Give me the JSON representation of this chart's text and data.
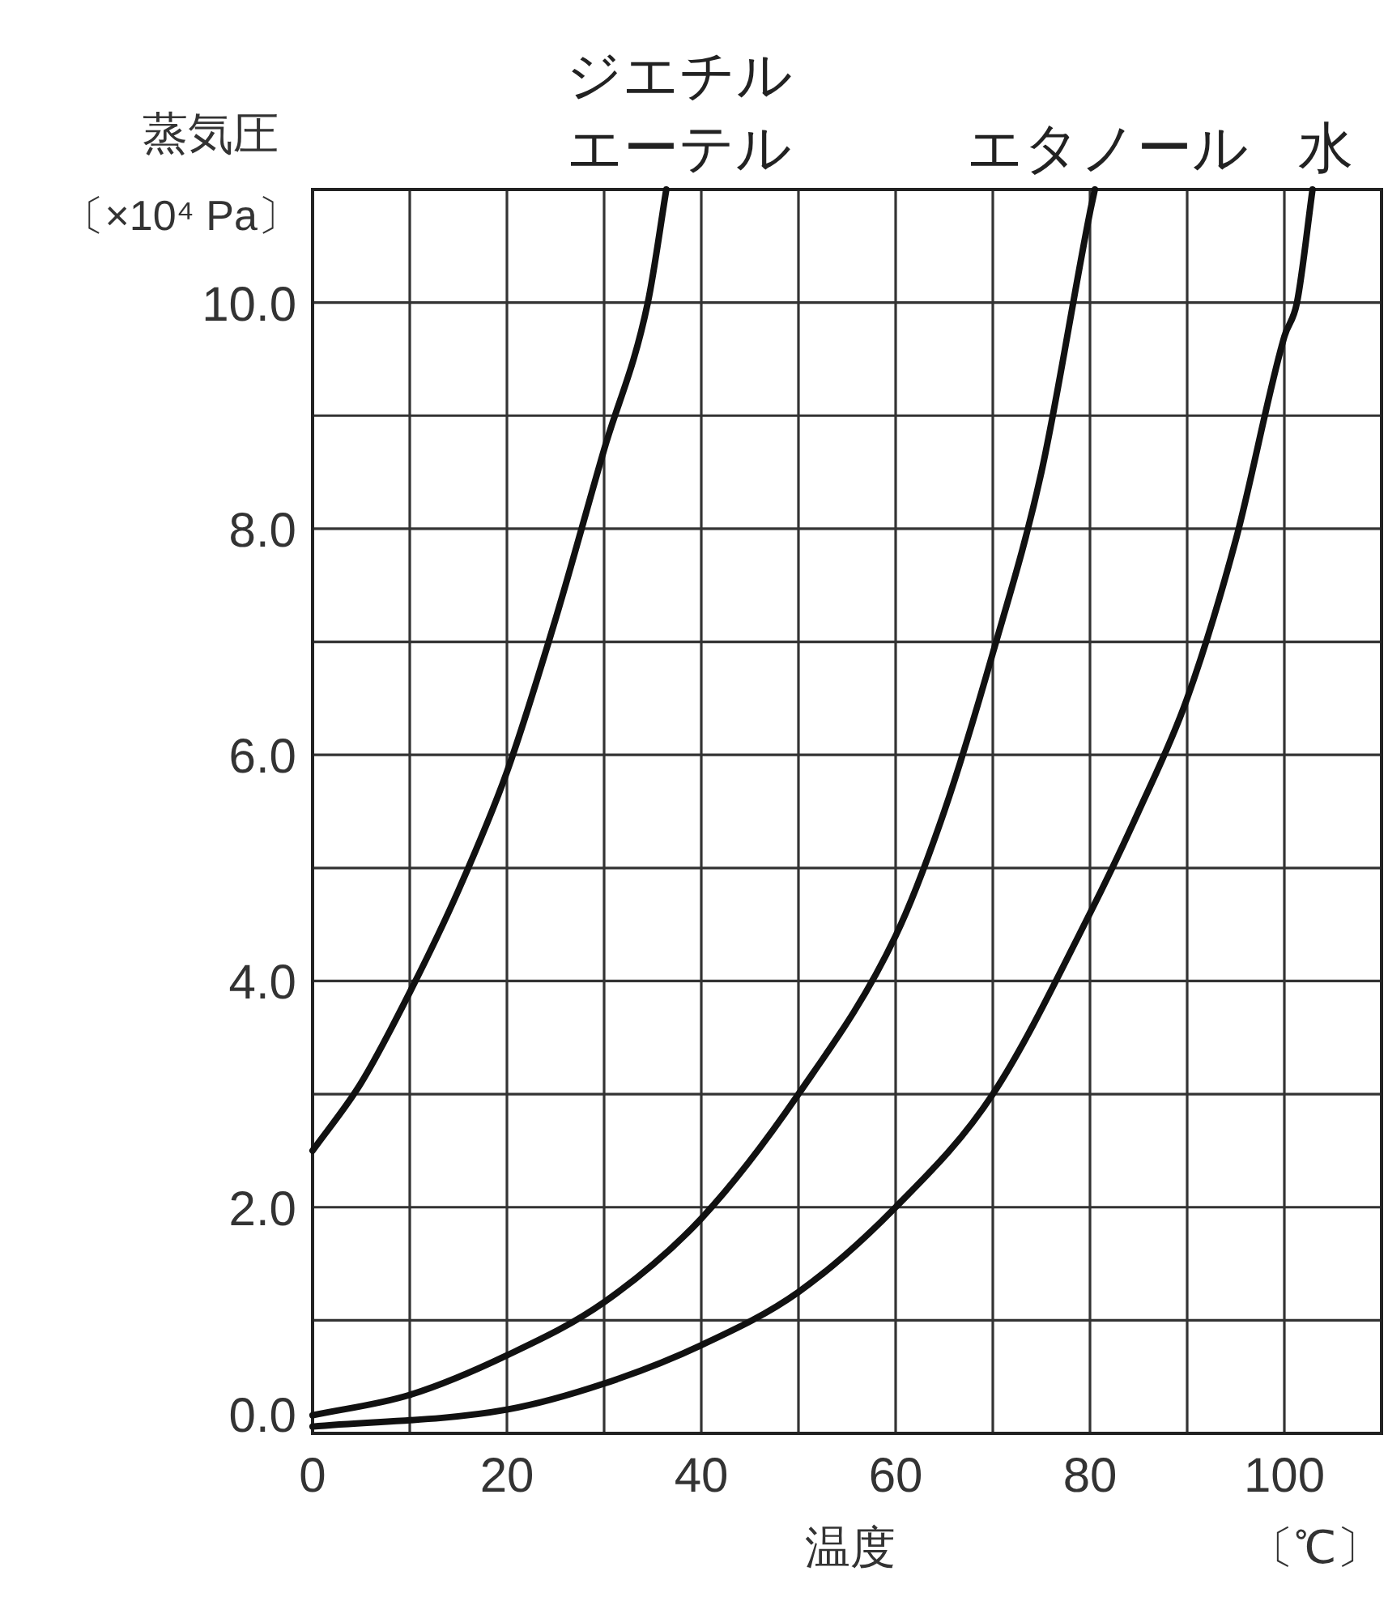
{
  "chart_data": {
    "type": "line",
    "xlabel": "温度",
    "ylabel": "蒸気圧",
    "annotations": [
      "〔×10⁴ Pa〕",
      "〔℃〕"
    ],
    "xlim": [
      0,
      110
    ],
    "ylim": [
      0,
      11
    ],
    "xticks": [
      0,
      {
        "value": 10,
        "label": null
      },
      20,
      {
        "value": 30,
        "label": null
      },
      40,
      {
        "value": 50,
        "label": null
      },
      60,
      {
        "value": 70,
        "label": null
      },
      80,
      {
        "value": 90,
        "label": null
      },
      100
    ],
    "yticks": [
      {
        "value": 0,
        "label": "0.0"
      },
      {
        "value": 1,
        "label": null
      },
      {
        "value": 2,
        "label": "2.0"
      },
      {
        "value": 3,
        "label": null
      },
      {
        "value": 4,
        "label": "4.0"
      },
      {
        "value": 5,
        "label": null
      },
      {
        "value": 6,
        "label": "6.0"
      },
      {
        "value": 7,
        "label": null
      },
      {
        "value": 8,
        "label": "8.0"
      },
      {
        "value": 9,
        "label": null
      },
      {
        "value": 10,
        "label": "10.0"
      }
    ],
    "grid": true,
    "marker": "none",
    "line_style": "solid",
    "series": [
      {
        "name": "ジエチルエーテル",
        "color": "#111111",
        "x": [
          0,
          5,
          10,
          15,
          20,
          25,
          30,
          34.5,
          36.4
        ],
        "values": [
          2.5,
          3.1,
          3.9,
          4.8,
          5.85,
          7.2,
          8.7,
          10,
          11
        ]
      },
      {
        "name": "エタノール",
        "color": "#111111",
        "x": [
          0,
          10,
          20,
          30,
          40,
          50,
          60,
          65,
          70,
          75,
          80,
          80.5
        ],
        "values": [
          0.16,
          0.34,
          0.69,
          1.16,
          1.9,
          3.0,
          4.4,
          5.5,
          6.9,
          8.5,
          10.8,
          11
        ]
      },
      {
        "name": "水",
        "color": "#111111",
        "x": [
          0,
          20,
          30,
          40,
          50,
          60,
          70,
          80,
          85,
          90,
          95,
          100,
          101.3,
          102.9
        ],
        "values": [
          0.06,
          0.21,
          0.44,
          0.78,
          1.25,
          2.0,
          3.0,
          4.6,
          5.5,
          6.5,
          7.9,
          9.7,
          10,
          11
        ]
      }
    ]
  }
}
